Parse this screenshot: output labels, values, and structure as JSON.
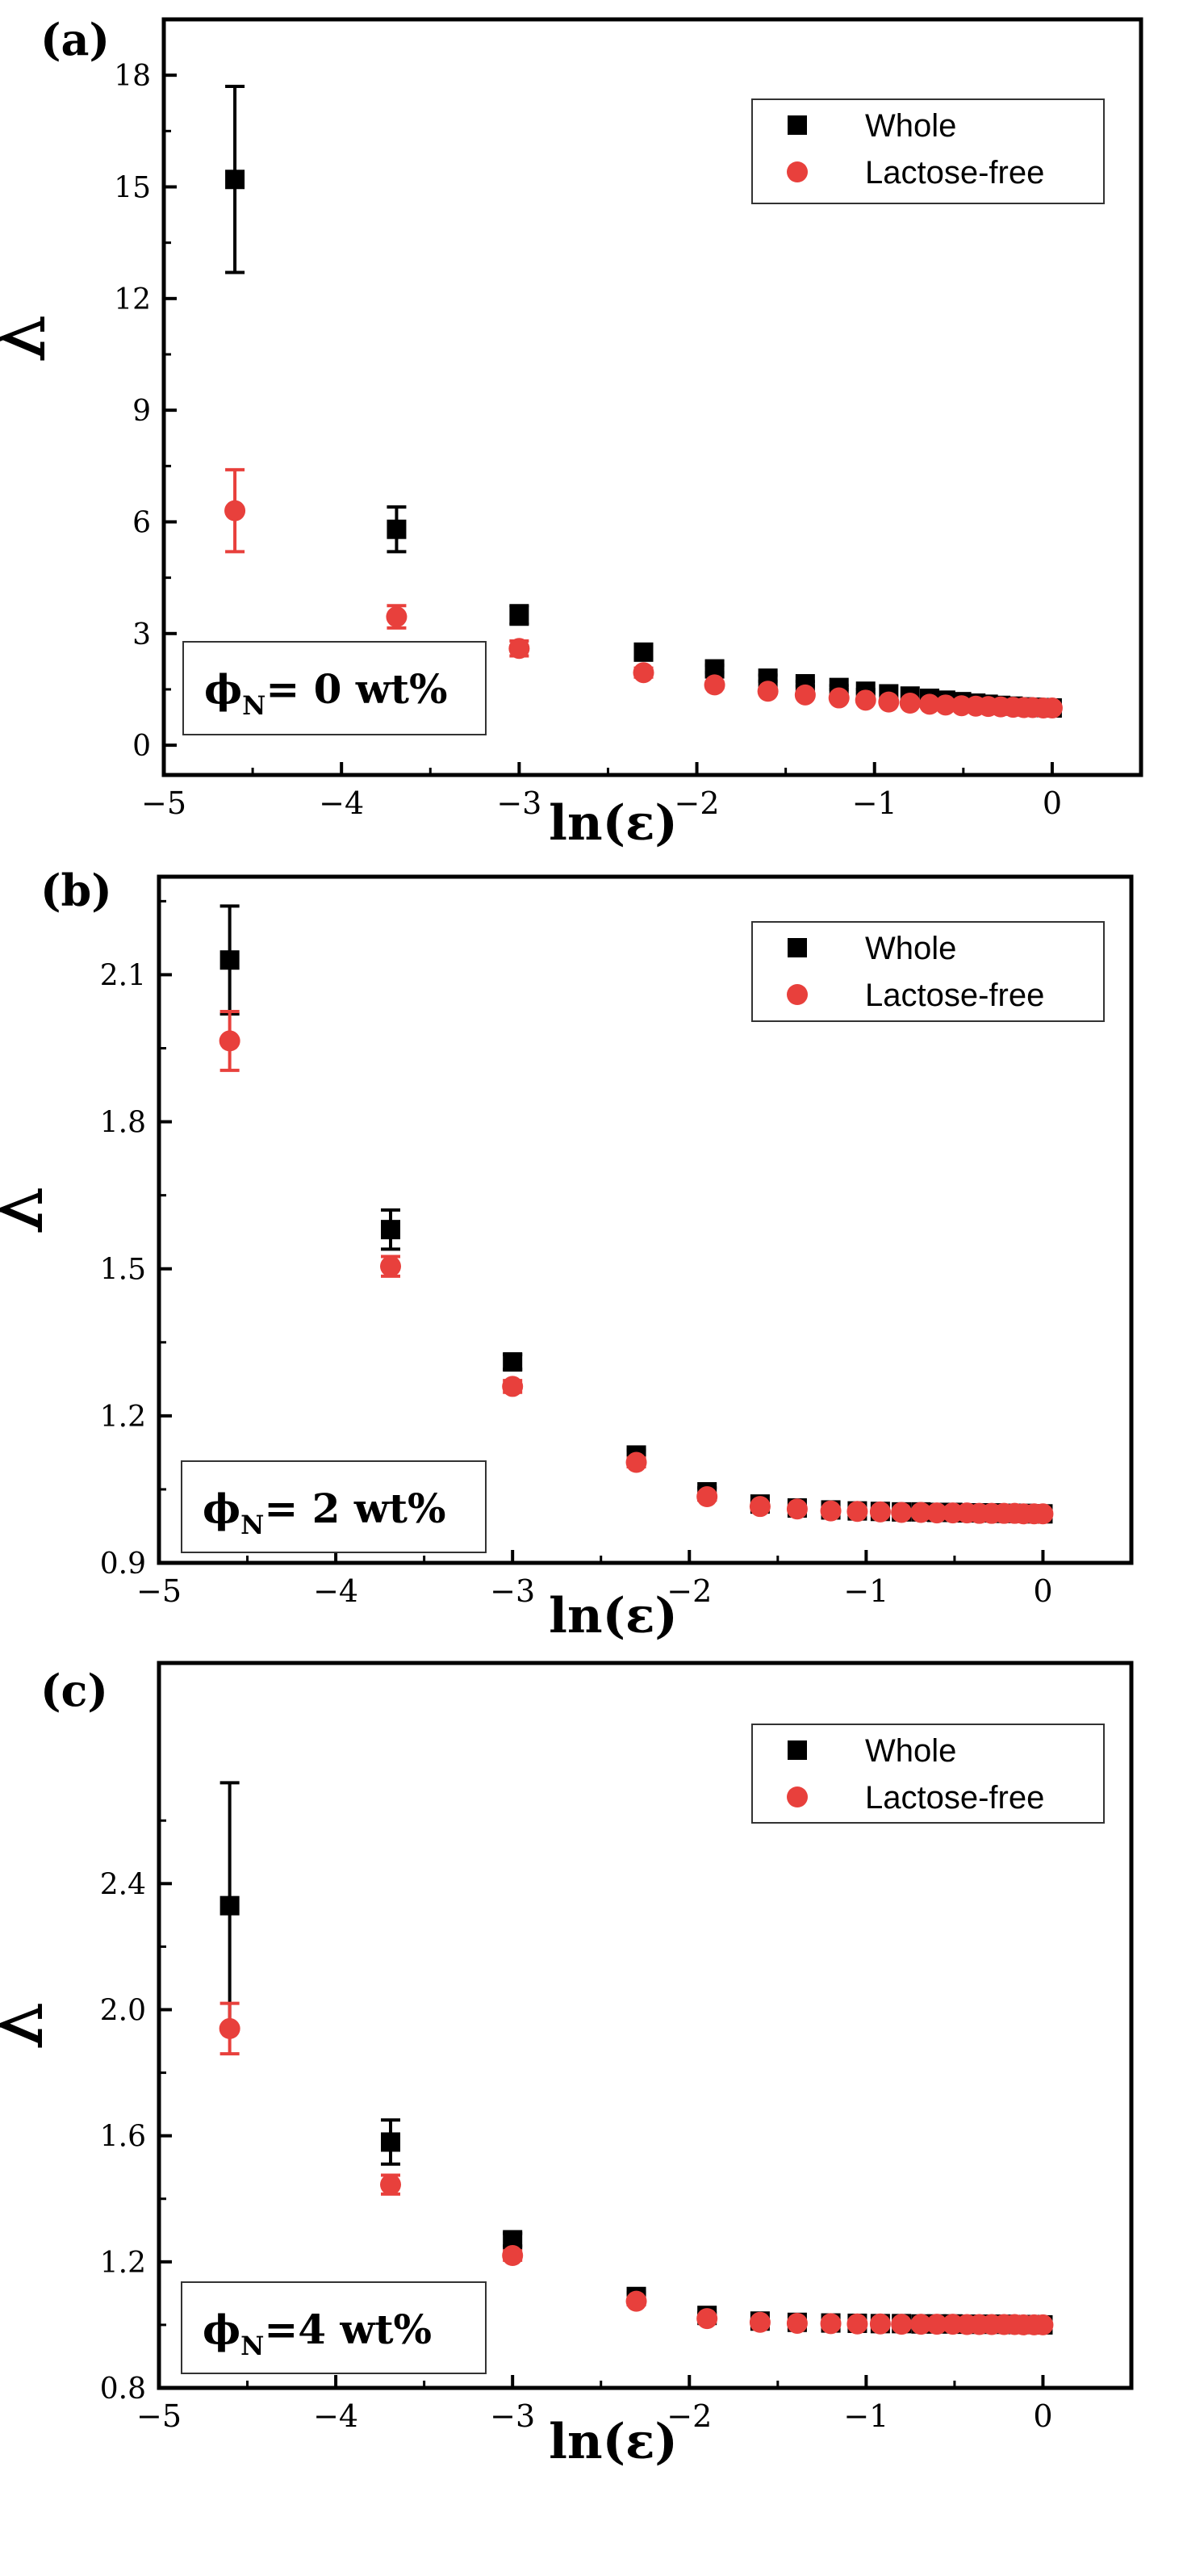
{
  "colors": {
    "whole": "#000000",
    "lactose_free": "#e8403c",
    "axis": "#000000"
  },
  "chart_data": [
    {
      "type": "scatter",
      "panel_label": "(a)",
      "xlabel": "ln(ε)",
      "ylabel": "λ",
      "xlim": [
        -5,
        0.5
      ],
      "ylim": [
        -0.8,
        19.5
      ],
      "xticks": [
        -5,
        -4,
        -3,
        -2,
        -1,
        0
      ],
      "xtick_labels": [
        "−5",
        "−4",
        "−3",
        "−2",
        "−1",
        "0"
      ],
      "yticks": [
        0,
        3,
        6,
        9,
        12,
        15,
        18
      ],
      "ytick_labels": [
        "0",
        "3",
        "6",
        "9",
        "12",
        "15",
        "18"
      ],
      "annotation": {
        "prefix": "ϕ",
        "sub": "N",
        "text": "= 0 wt%"
      },
      "legend": {
        "position": "top-right",
        "entries": [
          "Whole",
          "Lactose-free"
        ]
      },
      "series": [
        {
          "name": "Whole",
          "marker": "square",
          "x": [
            -4.6,
            -3.69,
            -3.0,
            -2.3,
            -1.9,
            -1.6,
            -1.39,
            -1.2,
            -1.05,
            -0.92,
            -0.8,
            -0.69,
            -0.6,
            -0.51,
            -0.43,
            -0.36,
            -0.29,
            -0.22,
            -0.16,
            -0.11,
            -0.05,
            0.0
          ],
          "y": [
            15.2,
            5.8,
            3.5,
            2.5,
            2.05,
            1.8,
            1.65,
            1.55,
            1.45,
            1.38,
            1.32,
            1.26,
            1.21,
            1.17,
            1.13,
            1.1,
            1.07,
            1.05,
            1.03,
            1.02,
            1.01,
            1.0
          ],
          "err": [
            2.5,
            0.6,
            0.25,
            0.15,
            0.1,
            0.08,
            0.06,
            0.05,
            0.05,
            0.04,
            0.04,
            0.03,
            0.03,
            0.03,
            0.02,
            0.02,
            0.02,
            0.02,
            0.01,
            0.01,
            0.01,
            0.01
          ]
        },
        {
          "name": "Lactose-free",
          "marker": "circle",
          "x": [
            -4.6,
            -3.69,
            -3.0,
            -2.3,
            -1.9,
            -1.6,
            -1.39,
            -1.2,
            -1.05,
            -0.92,
            -0.8,
            -0.69,
            -0.6,
            -0.51,
            -0.43,
            -0.36,
            -0.29,
            -0.22,
            -0.16,
            -0.11,
            -0.05,
            0.0
          ],
          "y": [
            6.3,
            3.45,
            2.6,
            1.95,
            1.62,
            1.45,
            1.35,
            1.27,
            1.21,
            1.16,
            1.13,
            1.1,
            1.08,
            1.06,
            1.05,
            1.04,
            1.03,
            1.02,
            1.01,
            1.01,
            1.0,
            1.0
          ],
          "err": [
            1.1,
            0.3,
            0.2,
            0.12,
            0.08,
            0.06,
            0.05,
            0.04,
            0.04,
            0.03,
            0.03,
            0.03,
            0.02,
            0.02,
            0.02,
            0.02,
            0.01,
            0.01,
            0.01,
            0.01,
            0.01,
            0.01
          ]
        }
      ]
    },
    {
      "type": "scatter",
      "panel_label": "(b)",
      "xlabel": "ln(ε)",
      "ylabel": "λ",
      "xlim": [
        -5,
        0.5
      ],
      "ylim": [
        0.9,
        2.3
      ],
      "xticks": [
        -5,
        -4,
        -3,
        -2,
        -1,
        0
      ],
      "xtick_labels": [
        "−5",
        "−4",
        "−3",
        "−2",
        "−1",
        "0"
      ],
      "yticks": [
        0.9,
        1.2,
        1.5,
        1.8,
        2.1
      ],
      "ytick_labels": [
        "0.9",
        "1.2",
        "1.5",
        "1.8",
        "2.1"
      ],
      "annotation": {
        "prefix": "ϕ",
        "sub": "N",
        "text": "= 2 wt%"
      },
      "legend": {
        "position": "top-right",
        "entries": [
          "Whole",
          "Lactose-free"
        ]
      },
      "series": [
        {
          "name": "Whole",
          "marker": "square",
          "x": [
            -4.6,
            -3.69,
            -3.0,
            -2.3,
            -1.9,
            -1.6,
            -1.39,
            -1.2,
            -1.05,
            -0.92,
            -0.8,
            -0.69,
            -0.6,
            -0.51,
            -0.43,
            -0.36,
            -0.29,
            -0.22,
            -0.16,
            -0.11,
            -0.05,
            0.0
          ],
          "y": [
            2.13,
            1.58,
            1.31,
            1.12,
            1.045,
            1.02,
            1.012,
            1.008,
            1.006,
            1.005,
            1.004,
            1.004,
            1.003,
            1.003,
            1.002,
            1.002,
            1.002,
            1.001,
            1.001,
            1.001,
            1.0,
            1.0
          ],
          "err": [
            0.11,
            0.04,
            0.015,
            0.01,
            0.008,
            0.006,
            0.005,
            0.005,
            0.004,
            0.004,
            0.004,
            0.003,
            0.003,
            0.003,
            0.003,
            0.003,
            0.002,
            0.002,
            0.002,
            0.002,
            0.002,
            0.002
          ]
        },
        {
          "name": "Lactose-free",
          "marker": "circle",
          "x": [
            -4.6,
            -3.69,
            -3.0,
            -2.3,
            -1.9,
            -1.6,
            -1.39,
            -1.2,
            -1.05,
            -0.92,
            -0.8,
            -0.69,
            -0.6,
            -0.51,
            -0.43,
            -0.36,
            -0.29,
            -0.22,
            -0.16,
            -0.11,
            -0.05,
            0.0
          ],
          "y": [
            1.965,
            1.505,
            1.26,
            1.105,
            1.035,
            1.015,
            1.01,
            1.006,
            1.005,
            1.004,
            1.003,
            1.003,
            1.002,
            1.002,
            1.002,
            1.001,
            1.001,
            1.001,
            1.001,
            1.0,
            1.0,
            1.0
          ],
          "err": [
            0.06,
            0.02,
            0.012,
            0.009,
            0.007,
            0.005,
            0.004,
            0.004,
            0.003,
            0.003,
            0.003,
            0.003,
            0.002,
            0.002,
            0.002,
            0.002,
            0.002,
            0.002,
            0.002,
            0.001,
            0.001,
            0.001
          ]
        }
      ]
    },
    {
      "type": "scatter",
      "panel_label": "(c)",
      "xlabel": "ln(ε)",
      "ylabel": "λ",
      "xlim": [
        -5,
        0.5
      ],
      "ylim": [
        0.8,
        3.1
      ],
      "xticks": [
        -5,
        -4,
        -3,
        -2,
        -1,
        0
      ],
      "xtick_labels": [
        "−5",
        "−4",
        "−3",
        "−2",
        "−1",
        "0"
      ],
      "yticks": [
        0.8,
        1.2,
        1.6,
        2.0,
        2.4
      ],
      "ytick_labels": [
        "0.8",
        "1.2",
        "1.6",
        "2.0",
        "2.4"
      ],
      "annotation": {
        "prefix": "ϕ",
        "sub": "N",
        "text": "=4 wt%"
      },
      "legend": {
        "position": "top-right",
        "entries": [
          "Whole",
          "Lactose-free"
        ]
      },
      "series": [
        {
          "name": "Whole",
          "marker": "square",
          "x": [
            -4.6,
            -3.69,
            -3.0,
            -2.3,
            -1.9,
            -1.6,
            -1.39,
            -1.2,
            -1.05,
            -0.92,
            -0.8,
            -0.69,
            -0.6,
            -0.51,
            -0.43,
            -0.36,
            -0.29,
            -0.22,
            -0.16,
            -0.11,
            -0.05,
            0.0
          ],
          "y": [
            2.33,
            1.58,
            1.27,
            1.09,
            1.03,
            1.012,
            1.008,
            1.006,
            1.005,
            1.004,
            1.004,
            1.003,
            1.003,
            1.003,
            1.002,
            1.002,
            1.002,
            1.002,
            1.001,
            1.001,
            1.001,
            1.0
          ],
          "err": [
            0.39,
            0.07,
            0.02,
            0.012,
            0.008,
            0.006,
            0.005,
            0.005,
            0.004,
            0.004,
            0.004,
            0.003,
            0.003,
            0.003,
            0.003,
            0.003,
            0.003,
            0.002,
            0.002,
            0.002,
            0.002,
            0.002
          ]
        },
        {
          "name": "Lactose-free",
          "marker": "circle",
          "x": [
            -4.6,
            -3.69,
            -3.0,
            -2.3,
            -1.9,
            -1.6,
            -1.39,
            -1.2,
            -1.05,
            -0.92,
            -0.8,
            -0.69,
            -0.6,
            -0.51,
            -0.43,
            -0.36,
            -0.29,
            -0.22,
            -0.16,
            -0.11,
            -0.05,
            0.0
          ],
          "y": [
            1.94,
            1.445,
            1.22,
            1.075,
            1.02,
            1.008,
            1.005,
            1.004,
            1.003,
            1.003,
            1.002,
            1.002,
            1.002,
            1.002,
            1.001,
            1.001,
            1.001,
            1.001,
            1.001,
            1.0,
            1.0,
            1.0
          ],
          "err": [
            0.08,
            0.03,
            0.015,
            0.01,
            0.007,
            0.005,
            0.004,
            0.004,
            0.003,
            0.003,
            0.003,
            0.003,
            0.002,
            0.002,
            0.002,
            0.002,
            0.002,
            0.002,
            0.002,
            0.001,
            0.001,
            0.001
          ]
        }
      ]
    }
  ]
}
